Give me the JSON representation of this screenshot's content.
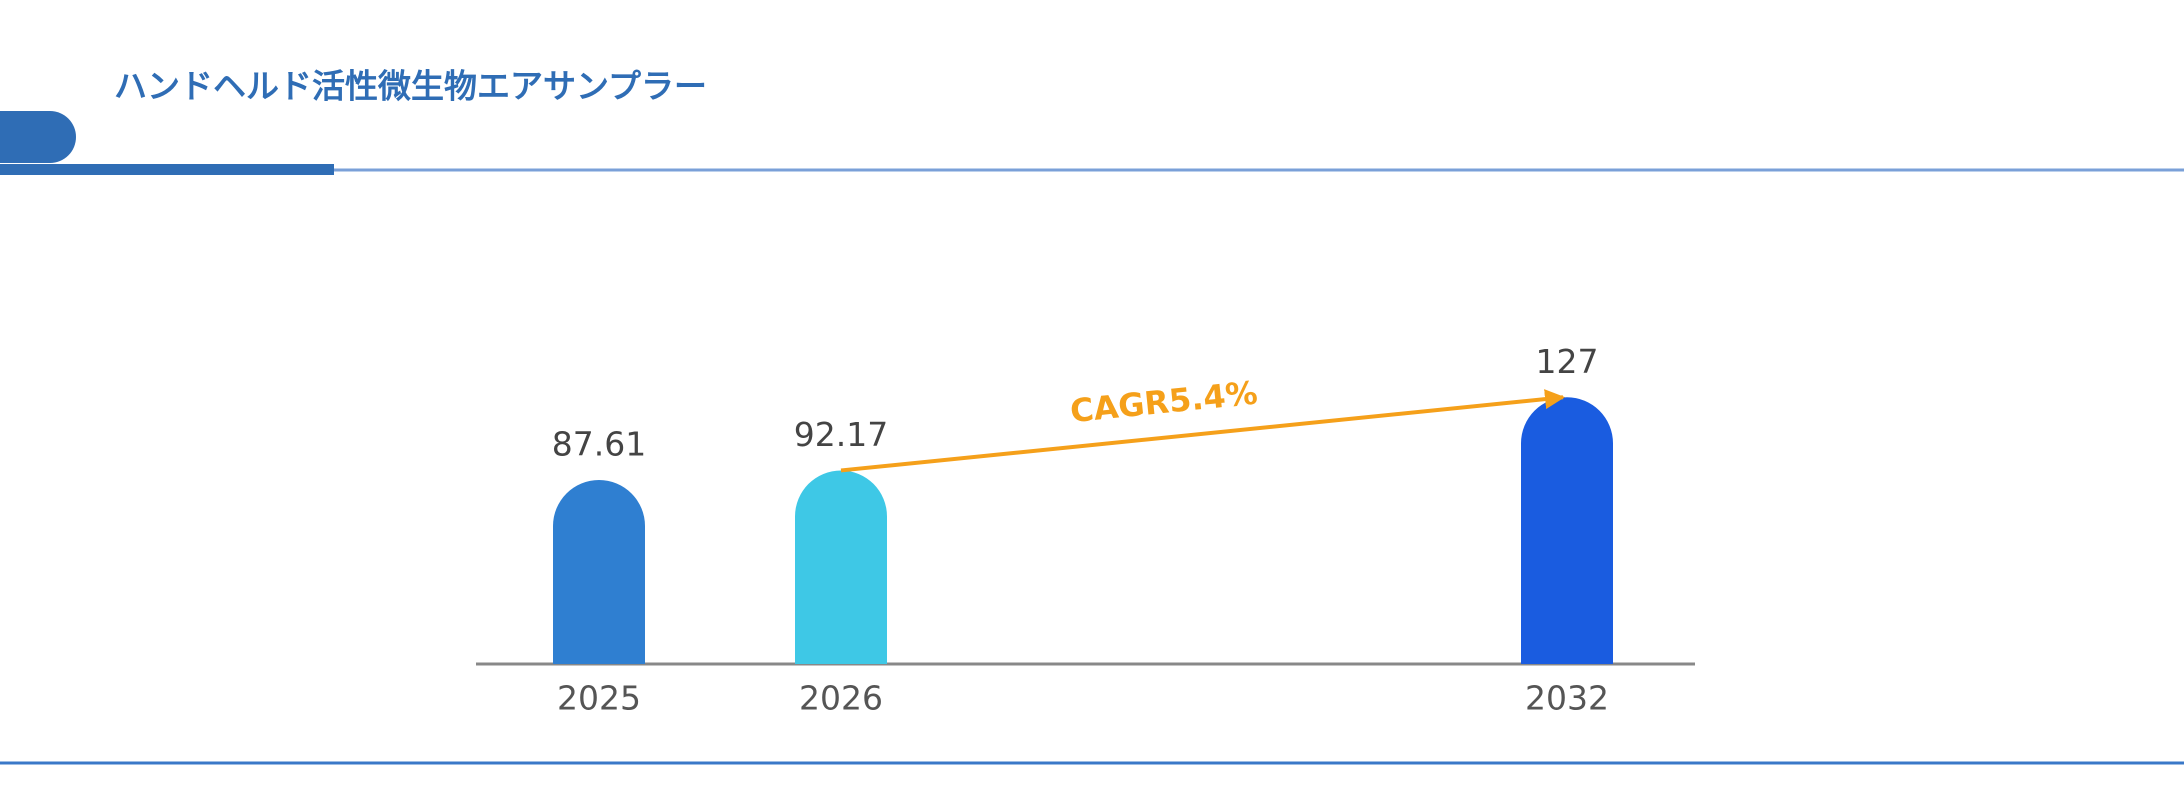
{
  "chart_data": {
    "type": "bar",
    "title": "ハンドヘルド活性微生物エアサンプラー",
    "categories": [
      "2025",
      "2026",
      null,
      null,
      "2032"
    ],
    "values": [
      87.61,
      92.17,
      null,
      null,
      127
    ],
    "colors": [
      "#2f7fd1",
      "#3ec8e6",
      null,
      null,
      "#1a5ce0"
    ],
    "ylim": [
      0,
      160
    ],
    "annotation": "CAGR5.4%"
  }
}
